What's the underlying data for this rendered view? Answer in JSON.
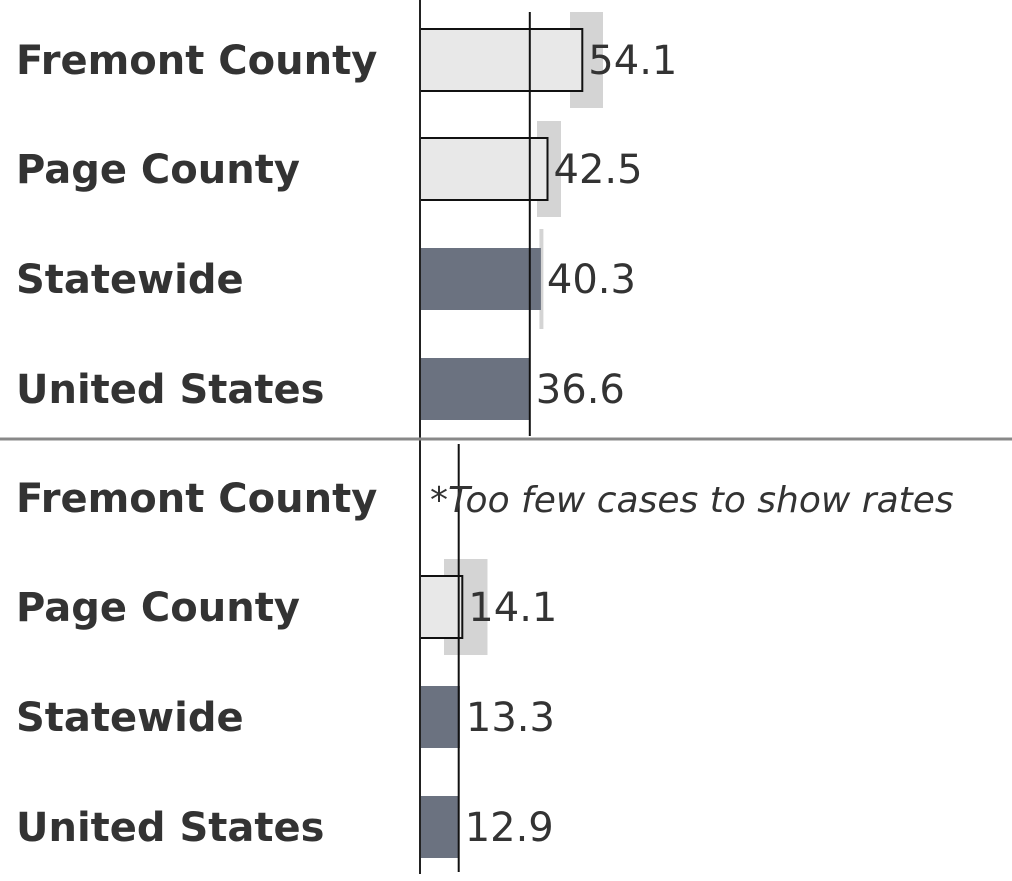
{
  "chart_data": [
    {
      "type": "bar",
      "orientation": "horizontal",
      "categories": [
        "Fremont County",
        "Page County",
        "Statewide",
        "United States"
      ],
      "values": [
        54.1,
        42.5,
        40.3,
        36.6
      ],
      "value_labels": [
        "54.1",
        "42.5",
        "40.3",
        "36.6"
      ],
      "ci_low": [
        50.0,
        39.0,
        39.8,
        null
      ],
      "ci_high": [
        61.0,
        47.0,
        41.0,
        null
      ],
      "reference_value": 36.6,
      "xlim": [
        0,
        60
      ]
    },
    {
      "type": "bar",
      "orientation": "horizontal",
      "categories": [
        "Fremont County",
        "Page County",
        "Statewide",
        "United States"
      ],
      "values": [
        null,
        14.1,
        13.3,
        12.9
      ],
      "value_labels": [
        "",
        "14.1",
        "13.3",
        "12.9"
      ],
      "ci_low": [
        null,
        8.0,
        null,
        null
      ],
      "ci_high": [
        null,
        22.5,
        null,
        null
      ],
      "reference_value": 12.9,
      "note": "*Too few cases to show rates",
      "xlim": [
        0,
        60
      ]
    }
  ],
  "colors": {
    "county_bar": "#e8e8e8",
    "state_us_bar": "#6b7280",
    "ci_shade": "#d4d4d4",
    "axis": "#222222",
    "divider": "#888888",
    "text": "#333333"
  }
}
